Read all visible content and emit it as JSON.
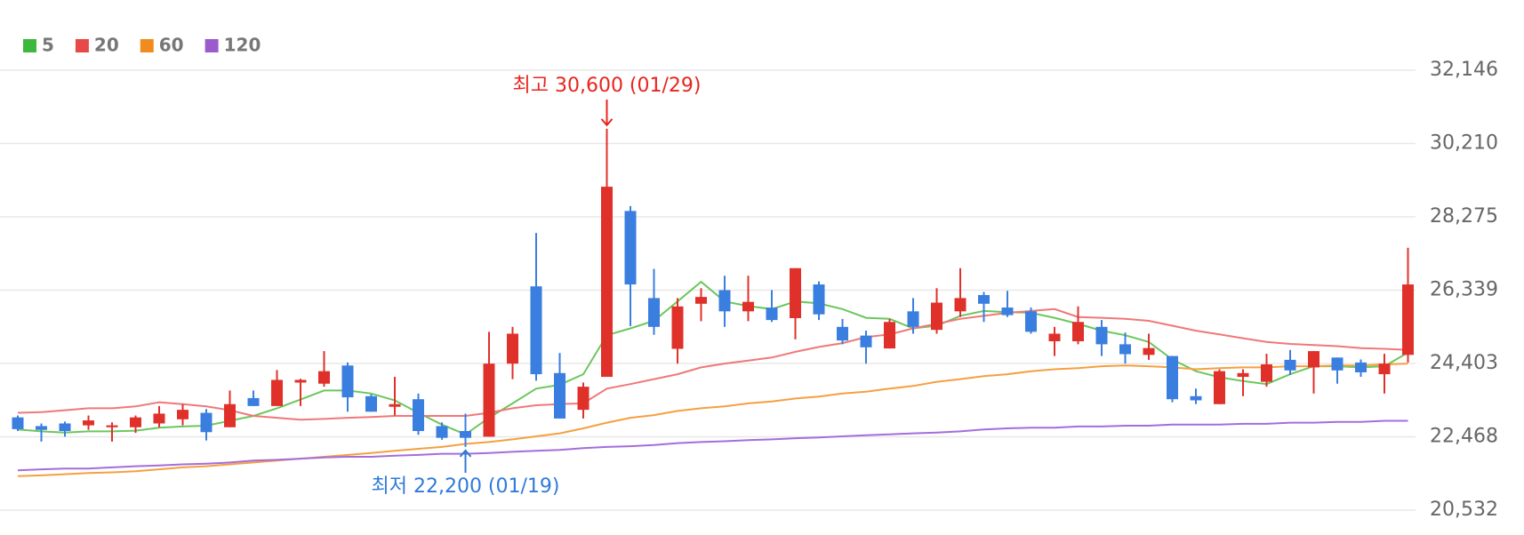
{
  "chart_data": {
    "type": "candlestick",
    "categories": [
      null,
      null,
      null,
      null,
      null,
      null,
      null,
      null,
      null,
      null,
      null,
      null,
      null,
      null,
      null,
      null,
      null,
      null,
      null,
      null,
      null,
      null,
      null,
      null,
      null,
      null,
      null,
      null,
      null,
      null,
      null,
      null,
      null,
      null,
      null,
      null,
      null,
      null,
      null,
      null,
      null,
      null,
      null,
      null,
      null,
      null,
      null,
      null,
      null,
      null,
      null,
      null,
      null,
      null,
      null,
      null,
      null,
      null,
      null,
      null
    ],
    "open": [
      22980,
      22750,
      22820,
      22770,
      22720,
      22720,
      22820,
      22930,
      23100,
      22720,
      23490,
      23280,
      23900,
      23870,
      24350,
      23540,
      23260,
      23460,
      22750,
      22620,
      22470,
      24400,
      26440,
      24150,
      23180,
      24050,
      28430,
      26130,
      24790,
      25980,
      26340,
      25780,
      25880,
      25600,
      26490,
      25370,
      25140,
      24800,
      25780,
      25290,
      25780,
      26210,
      25880,
      25780,
      24990,
      24990,
      25370,
      24910,
      24630,
      24600,
      23540,
      23330,
      24050,
      23920,
      24500,
      24300,
      24560,
      24430,
      24120,
      24630
    ],
    "high": [
      23030,
      22820,
      22870,
      23030,
      22850,
      23030,
      23280,
      23330,
      23200,
      23690,
      23690,
      24230,
      24000,
      24730,
      24430,
      23590,
      24050,
      23610,
      22850,
      23080,
      25240,
      25370,
      27850,
      24680,
      23900,
      30600,
      28560,
      26900,
      26130,
      26390,
      26720,
      26720,
      26340,
      26920,
      26570,
      25580,
      25270,
      25580,
      26130,
      26390,
      26920,
      26290,
      26320,
      25880,
      25370,
      25910,
      25550,
      25220,
      25190,
      24600,
      23740,
      24250,
      24250,
      24660,
      24760,
      24730,
      24560,
      24510,
      24660,
      27460
    ],
    "low": [
      22620,
      22340,
      22470,
      22650,
      22340,
      22570,
      22720,
      22770,
      22370,
      22720,
      23280,
      23280,
      23280,
      23790,
      23130,
      23130,
      23030,
      22520,
      22390,
      22200,
      22470,
      23990,
      23950,
      22950,
      22950,
      24050,
      25390,
      25160,
      24400,
      25520,
      25370,
      25520,
      25500,
      25040,
      25550,
      24910,
      24400,
      24800,
      25190,
      25190,
      25630,
      25500,
      25630,
      25190,
      24600,
      24910,
      24600,
      24400,
      24500,
      23380,
      23330,
      23330,
      23540,
      23790,
      24100,
      23610,
      23870,
      24050,
      23610,
      24430
    ],
    "close": [
      22670,
      22650,
      22620,
      22900,
      22770,
      22980,
      23080,
      23180,
      22590,
      23330,
      23280,
      23970,
      23970,
      24200,
      23510,
      23130,
      23330,
      22620,
      22440,
      22440,
      24400,
      25190,
      24120,
      22950,
      23790,
      29070,
      26490,
      25370,
      25910,
      26160,
      25780,
      26030,
      25550,
      26920,
      25700,
      25010,
      24830,
      25500,
      25370,
      26010,
      26130,
      25980,
      25680,
      25240,
      25190,
      25500,
      24910,
      24650,
      24810,
      23460,
      23430,
      24200,
      24150,
      24380,
      24220,
      24730,
      24220,
      24170,
      24400,
      26490
    ],
    "up_color": "#e0302a",
    "down_color": "#3a7ee0",
    "lines": [
      {
        "name": "5",
        "color": "#6cc75c",
        "legend_color": "#3cb93c",
        "values": [
          22660,
          22610,
          22580,
          22610,
          22610,
          22630,
          22710,
          22740,
          22760,
          22890,
          23020,
          23220,
          23450,
          23690,
          23690,
          23610,
          23430,
          23100,
          22790,
          22530,
          22970,
          23350,
          23740,
          23840,
          24120,
          25150,
          25330,
          25530,
          26040,
          26560,
          26040,
          25920,
          25840,
          26040,
          25990,
          25840,
          25610,
          25580,
          25330,
          25400,
          25660,
          25790,
          25760,
          25740,
          25610,
          25450,
          25270,
          25150,
          24970,
          24510,
          24200,
          24040,
          23940,
          23860,
          24120,
          24330,
          24330,
          24300,
          24330,
          24690
        ]
      },
      {
        "name": "20",
        "color": "#f07878",
        "legend_color": "#e84848",
        "values": [
          23100,
          23120,
          23170,
          23220,
          23220,
          23270,
          23380,
          23330,
          23270,
          23170,
          23020,
          22970,
          22920,
          22940,
          22970,
          22990,
          23020,
          23020,
          23020,
          23020,
          23100,
          23220,
          23300,
          23330,
          23350,
          23740,
          23860,
          23990,
          24120,
          24300,
          24400,
          24480,
          24560,
          24710,
          24840,
          24940,
          25100,
          25170,
          25330,
          25450,
          25580,
          25660,
          25740,
          25790,
          25840,
          25630,
          25610,
          25580,
          25530,
          25400,
          25270,
          25170,
          25070,
          24970,
          24920,
          24890,
          24860,
          24810,
          24790,
          24760
        ]
      },
      {
        "name": "60",
        "color": "#f5a040",
        "legend_color": "#f08c1e",
        "values": [
          21430,
          21450,
          21480,
          21510,
          21530,
          21560,
          21610,
          21660,
          21690,
          21740,
          21790,
          21840,
          21890,
          21940,
          21990,
          22040,
          22100,
          22150,
          22200,
          22280,
          22330,
          22400,
          22480,
          22560,
          22690,
          22840,
          22970,
          23040,
          23150,
          23220,
          23270,
          23350,
          23400,
          23480,
          23530,
          23610,
          23660,
          23740,
          23810,
          23920,
          23990,
          24070,
          24120,
          24200,
          24250,
          24280,
          24330,
          24350,
          24330,
          24300,
          24250,
          24280,
          24300,
          24300,
          24330,
          24330,
          24350,
          24350,
          24380,
          24400
        ]
      },
      {
        "name": "120",
        "color": "#a56ddb",
        "legend_color": "#9a5ccc",
        "values": [
          21580,
          21610,
          21630,
          21630,
          21660,
          21690,
          21710,
          21740,
          21760,
          21790,
          21840,
          21860,
          21890,
          21920,
          21940,
          21940,
          21970,
          21990,
          22020,
          22020,
          22040,
          22070,
          22100,
          22120,
          22170,
          22200,
          22220,
          22250,
          22300,
          22330,
          22350,
          22380,
          22400,
          22430,
          22450,
          22480,
          22510,
          22530,
          22560,
          22580,
          22610,
          22660,
          22690,
          22710,
          22710,
          22740,
          22740,
          22760,
          22760,
          22790,
          22790,
          22790,
          22810,
          22810,
          22840,
          22840,
          22860,
          22860,
          22890,
          22890
        ]
      }
    ],
    "max_annotation": {
      "text": "최고 30,600 (01/29)",
      "color": "#e8251f"
    },
    "min_annotation": {
      "text": "최저 22,200 (01/19)",
      "color": "#2f7ad8"
    },
    "ylim": [
      20532,
      32146
    ],
    "yticks": [
      {
        "value": 20532,
        "label": "20,532"
      },
      {
        "value": 22468,
        "label": "22,468"
      },
      {
        "value": 24403,
        "label": "24,403"
      },
      {
        "value": 26339,
        "label": "26,339"
      },
      {
        "value": 28275,
        "label": "28,275"
      },
      {
        "value": 30210,
        "label": "30,210"
      },
      {
        "value": 32146,
        "label": "32,146"
      }
    ],
    "grid": true
  }
}
